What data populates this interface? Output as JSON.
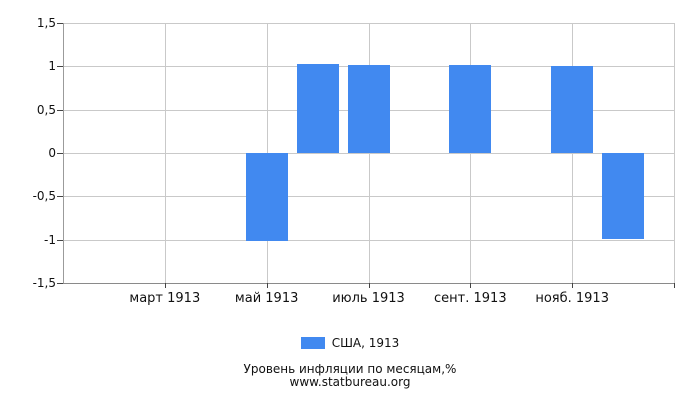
{
  "chart_data": {
    "type": "bar",
    "title": "Уровень инфляции по месяцам,%",
    "source": "www.statbureau.org",
    "legend_label": "США, 1913",
    "legend_position": "bottom-center",
    "bar_color": "#4189F0",
    "grid": true,
    "ylim": [
      -1.5,
      1.5
    ],
    "y_tick_step": 0.5,
    "y_ticks": [
      1.5,
      1,
      0.5,
      0,
      -0.5,
      -1,
      -1.5
    ],
    "y_tick_labels": [
      "1,5",
      "1",
      "0,5",
      "0",
      "-0,5",
      "-1",
      "-1,5"
    ],
    "x_axis": {
      "months_in_range": 12,
      "gridline_month_indices": [
        2,
        4,
        6,
        8,
        10,
        12
      ],
      "tick_month_indices": [
        2,
        4,
        6,
        8,
        10
      ],
      "tick_labels": [
        "март 1913",
        "май 1913",
        "июль 1913",
        "сент. 1913",
        "нояб. 1913"
      ]
    },
    "series": [
      {
        "name": "США, 1913",
        "color": "#4189F0",
        "points": [
          {
            "month": "май 1913",
            "month_index": 4,
            "value": -1.02
          },
          {
            "month": "июнь 1913",
            "month_index": 5,
            "value": 1.03
          },
          {
            "month": "июль 1913",
            "month_index": 6,
            "value": 1.02
          },
          {
            "month": "сент. 1913",
            "month_index": 8,
            "value": 1.01
          },
          {
            "month": "нояб. 1913",
            "month_index": 10,
            "value": 1.0
          },
          {
            "month": "дек. 1913",
            "month_index": 11,
            "value": -0.99
          }
        ]
      }
    ]
  }
}
